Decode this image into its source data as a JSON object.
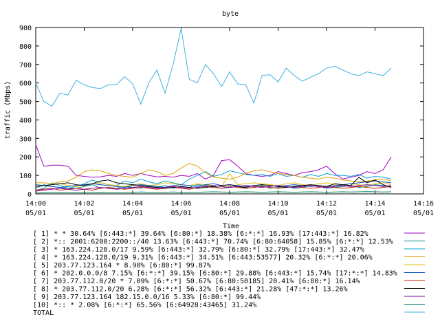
{
  "chart_data": {
    "type": "line",
    "title": "byte",
    "xlabel": "Time",
    "ylabel": "traffic (Mbps)",
    "ylim": [
      0,
      900
    ],
    "yticks": [
      "0",
      "100",
      "200",
      "300",
      "400",
      "500",
      "600",
      "700",
      "800",
      "900"
    ],
    "xlim": [
      "14:00",
      "14:16"
    ],
    "xticks": [
      {
        "time": "14:00",
        "date": "05/01"
      },
      {
        "time": "14:02",
        "date": "05/01"
      },
      {
        "time": "14:04",
        "date": "05/01"
      },
      {
        "time": "14:06",
        "date": "05/01"
      },
      {
        "time": "14:08",
        "date": "05/01"
      },
      {
        "time": "14:10",
        "date": "05/01"
      },
      {
        "time": "14:12",
        "date": "05/01"
      },
      {
        "time": "14:14",
        "date": "05/01"
      },
      {
        "time": "14:16",
        "date": "05/01"
      }
    ],
    "grid": false,
    "legend_placement": "bottom",
    "x": [
      "14:00:00",
      "14:00:20",
      "14:00:40",
      "14:01:00",
      "14:01:20",
      "14:01:40",
      "14:02:00",
      "14:02:20",
      "14:02:40",
      "14:03:00",
      "14:03:20",
      "14:03:40",
      "14:04:00",
      "14:04:20",
      "14:04:40",
      "14:05:00",
      "14:05:20",
      "14:05:40",
      "14:06:00",
      "14:06:20",
      "14:06:40",
      "14:07:00",
      "14:07:20",
      "14:07:40",
      "14:08:00",
      "14:08:20",
      "14:08:40",
      "14:09:00",
      "14:09:20",
      "14:09:40",
      "14:10:00",
      "14:10:20",
      "14:10:40",
      "14:11:00",
      "14:11:20",
      "14:11:40",
      "14:12:00",
      "14:12:20",
      "14:12:40",
      "14:13:00",
      "14:13:20",
      "14:13:40",
      "14:14:00",
      "14:14:20",
      "14:14:40"
    ],
    "series": [
      {
        "name": "[ 1] * * 30.64%  [6:443:*] 39.64% [6:80:*] 18.38% [6:*:*] 16.93% [17:443:*] 16.82%",
        "color": "#a000c0",
        "values": [
          265,
          150,
          155,
          155,
          150,
          100,
          95,
          90,
          92,
          100,
          95,
          110,
          100,
          110,
          100,
          92,
          95,
          90,
          100,
          95,
          110,
          80,
          100,
          180,
          185,
          150,
          110,
          100,
          95,
          100,
          120,
          110,
          100,
          115,
          120,
          130,
          150,
          110,
          80,
          90,
          100,
          120,
          110,
          130,
          200
        ]
      },
      {
        "name": "[ 2] *:: 2001:6200:2200::/40 13.63%  [6:443:*] 70.74% [6:80:64058] 15.85% [6:*:*] 12.53%",
        "color": "#008080",
        "values": [
          30,
          50,
          40,
          35,
          30,
          30,
          40,
          50,
          30,
          35,
          30,
          40,
          35,
          30,
          40,
          35,
          45,
          30,
          40,
          35,
          50,
          45,
          40,
          30,
          35,
          40,
          30,
          35,
          45,
          30,
          35,
          40,
          30,
          35,
          45,
          40,
          30,
          35,
          40,
          45,
          35,
          40,
          50,
          45,
          40
        ]
      },
      {
        "name": "[ 3] * 163.224.128.0/17 9.59%  [6:443:*] 32.79% [6:80:*] 32.79% [17:443:*] 32.47%",
        "color": "#00a0d0",
        "values": [
          20,
          30,
          60,
          45,
          30,
          40,
          55,
          75,
          60,
          50,
          45,
          70,
          60,
          80,
          65,
          55,
          70,
          60,
          50,
          80,
          100,
          120,
          95,
          105,
          125,
          115,
          105,
          100,
          105,
          95,
          110,
          95,
          100,
          90,
          105,
          95,
          110,
          100,
          100,
          95,
          105,
          85,
          95,
          90,
          80
        ]
      },
      {
        "name": "[ 4] * 163.224.128.0/19 9.31%  [6:443:*] 34.51% [6:443:53577] 20.32% [6:*:*] 20.06%",
        "color": "#e0a000",
        "values": [
          60,
          60,
          55,
          65,
          70,
          90,
          120,
          130,
          125,
          110,
          100,
          95,
          90,
          110,
          130,
          120,
          100,
          110,
          140,
          165,
          150,
          115,
          90,
          85,
          80,
          90,
          110,
          125,
          130,
          120,
          110,
          105,
          100,
          90,
          85,
          80,
          90,
          85,
          75,
          70,
          65,
          70,
          75,
          80,
          70
        ]
      },
      {
        "name": "[ 5] 203.77.123.164 * 8.90%  [6:80:*] 99.87%",
        "color": "#e0c000",
        "values": [
          40,
          45,
          50,
          55,
          45,
          40,
          50,
          55,
          60,
          50,
          45,
          40,
          50,
          55,
          45,
          50,
          60,
          55,
          50,
          45,
          55,
          50,
          45,
          40,
          110,
          50,
          55,
          60,
          55,
          50,
          45,
          55,
          60,
          50,
          45,
          55,
          60,
          50,
          45,
          55,
          50,
          45,
          55,
          60,
          50
        ]
      },
      {
        "name": "[ 6] * 202.0.0.0/8 7.15%  [6:*:*] 39.15% [6:80:*] 29.88% [6:443:*] 15.74% [17:*:*] 14.83%",
        "color": "#0050c0",
        "values": [
          50,
          45,
          40,
          35,
          40,
          45,
          50,
          55,
          50,
          45,
          40,
          35,
          45,
          50,
          45,
          40,
          35,
          45,
          50,
          45,
          40,
          50,
          55,
          45,
          50,
          45,
          40,
          45,
          50,
          45,
          40,
          45,
          50,
          45,
          40,
          45,
          40,
          45,
          50,
          55,
          60,
          65,
          70,
          65,
          60
        ]
      },
      {
        "name": "[ 7] 203.77.112.0/20 * 7.09%  [6:*:*] 50.67% [6:80:50185] 20.41% [6:80:*] 16.14%",
        "color": "#c02000",
        "values": [
          20,
          25,
          30,
          20,
          25,
          30,
          25,
          20,
          30,
          35,
          30,
          25,
          30,
          35,
          30,
          25,
          30,
          35,
          30,
          25,
          35,
          40,
          35,
          30,
          40,
          35,
          30,
          35,
          40,
          35,
          30,
          35,
          40,
          35,
          30,
          35,
          40,
          35,
          30,
          35,
          40,
          35,
          30,
          35,
          40
        ]
      },
      {
        "name": "[ 8] * 203.77.112.0/20 6.28%  [6:*:*] 56.32% [6:443:*] 21.28% [47:*:*] 13.26%",
        "color": "#000000",
        "values": [
          40,
          45,
          50,
          55,
          60,
          50,
          45,
          55,
          70,
          75,
          60,
          55,
          50,
          45,
          40,
          35,
          30,
          35,
          40,
          35,
          30,
          35,
          40,
          45,
          50,
          40,
          35,
          45,
          50,
          45,
          40,
          35,
          40,
          45,
          50,
          45,
          40,
          55,
          50,
          45,
          90,
          60,
          75,
          50,
          35
        ]
      },
      {
        "name": "[ 9] 203.77.123.164 182.15.0.0/16 5.33%  [6:80:*] 99.44%",
        "color": "#8000a0",
        "values": [
          15,
          20,
          25,
          30,
          25,
          20,
          25,
          30,
          35,
          30,
          25,
          30,
          35,
          40,
          35,
          30,
          35,
          40,
          35,
          30,
          35,
          40,
          45,
          40,
          35,
          40,
          45,
          40,
          35,
          40,
          45,
          40,
          35,
          40,
          45,
          40,
          35,
          40,
          45,
          40,
          45,
          50,
          45,
          40,
          45
        ]
      },
      {
        "name": "[10] *:: * 2.08%  [6:*:*] 65.56% [6:64928:43465] 31.24%",
        "color": "#008060",
        "values": [
          5,
          6,
          7,
          8,
          7,
          6,
          7,
          8,
          9,
          8,
          7,
          8,
          9,
          10,
          9,
          8,
          9,
          10,
          9,
          8,
          9,
          10,
          11,
          10,
          9,
          10,
          11,
          10,
          9,
          10,
          11,
          10,
          9,
          10,
          11,
          10,
          9,
          10,
          11,
          10,
          11,
          12,
          11,
          10,
          11
        ]
      },
      {
        "name": "TOTAL",
        "color": "#40b0e0",
        "values": [
          600,
          500,
          475,
          545,
          535,
          615,
          590,
          575,
          570,
          590,
          590,
          635,
          595,
          485,
          600,
          670,
          545,
          700,
          895,
          620,
          600,
          700,
          650,
          580,
          660,
          595,
          590,
          490,
          640,
          645,
          605,
          680,
          640,
          610,
          630,
          650,
          680,
          690,
          670,
          650,
          640,
          660,
          650,
          640,
          680
        ]
      }
    ]
  }
}
